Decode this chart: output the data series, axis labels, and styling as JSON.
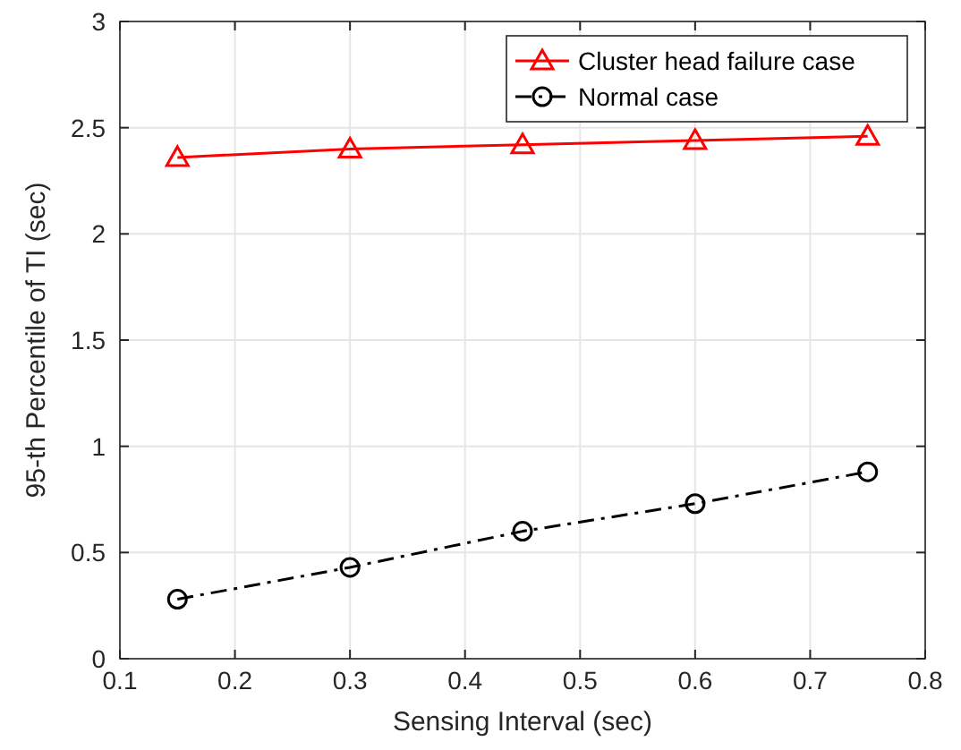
{
  "chart_data": {
    "type": "line",
    "xlabel": "Sensing Interval (sec)",
    "ylabel": "95-th Percentile of TI (sec)",
    "x": [
      0.15,
      0.3,
      0.45,
      0.6,
      0.75
    ],
    "series": [
      {
        "name": "Cluster head failure case",
        "color": "#ff0000",
        "values": [
          2.36,
          2.4,
          2.42,
          2.44,
          2.46
        ],
        "marker": "triangle",
        "line_style": "solid"
      },
      {
        "name": "Normal case",
        "color": "#000000",
        "values": [
          0.28,
          0.43,
          0.6,
          0.73,
          0.88
        ],
        "marker": "circle",
        "line_style": "dashed"
      }
    ],
    "xlim": [
      0.1,
      0.8
    ],
    "xticks": [
      0.1,
      0.2,
      0.3,
      0.4,
      0.5,
      0.6,
      0.7,
      0.8
    ],
    "ylim": [
      0,
      3
    ],
    "yticks": [
      0,
      0.5,
      1,
      1.5,
      2,
      2.5,
      3
    ],
    "grid": true,
    "legend": "top right"
  }
}
